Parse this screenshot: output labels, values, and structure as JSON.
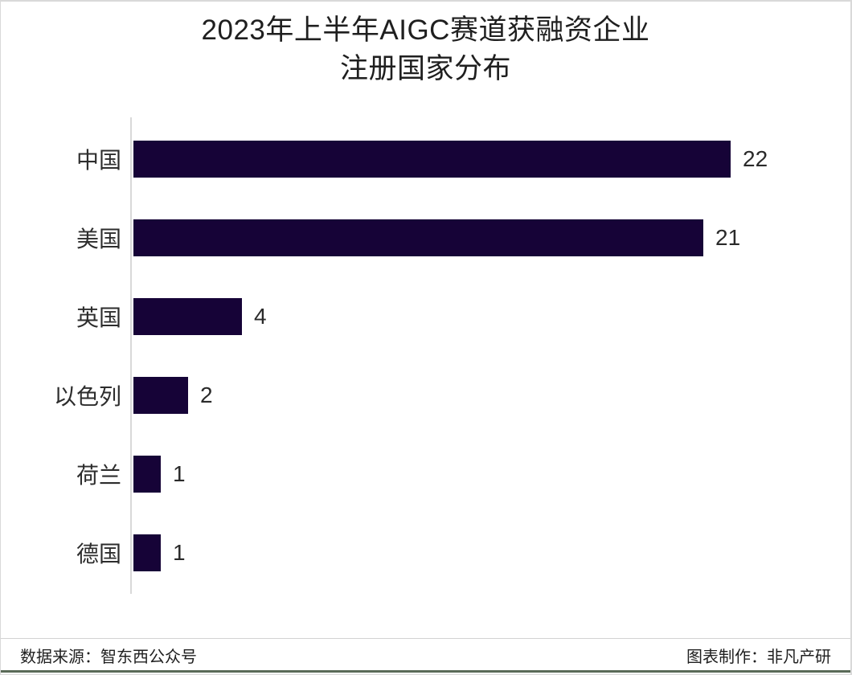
{
  "chart_data": {
    "type": "bar",
    "orientation": "horizontal",
    "title": "2023年上半年AIGC赛道获融资企业注册国家分布",
    "title_lines": [
      "2023年上半年AIGC赛道获融资企业",
      "注册国家分布"
    ],
    "categories": [
      "中国",
      "美国",
      "英国",
      "以色列",
      "荷兰",
      "德国"
    ],
    "values": [
      22,
      21,
      4,
      2,
      1,
      1
    ],
    "xlabel": "",
    "ylabel": "",
    "xlim": [
      0,
      22
    ],
    "grid": false,
    "legend": false,
    "value_labels_shown": true,
    "bar_color": "#160337"
  },
  "footer": {
    "source_label": "数据来源：智东西公众号",
    "credit_label": "图表制作：非凡产研"
  },
  "colors": {
    "background": "#ffffff",
    "bar": "#160337",
    "axis_line": "#d9d9d9",
    "title_text": "#1f1f1f",
    "category_text": "#2d2d2d",
    "value_text": "#2a2a2a",
    "footer_text": "#1f1f1f",
    "frame_border": "#d9d9d9",
    "bottom_rule": "#5a6b58"
  }
}
